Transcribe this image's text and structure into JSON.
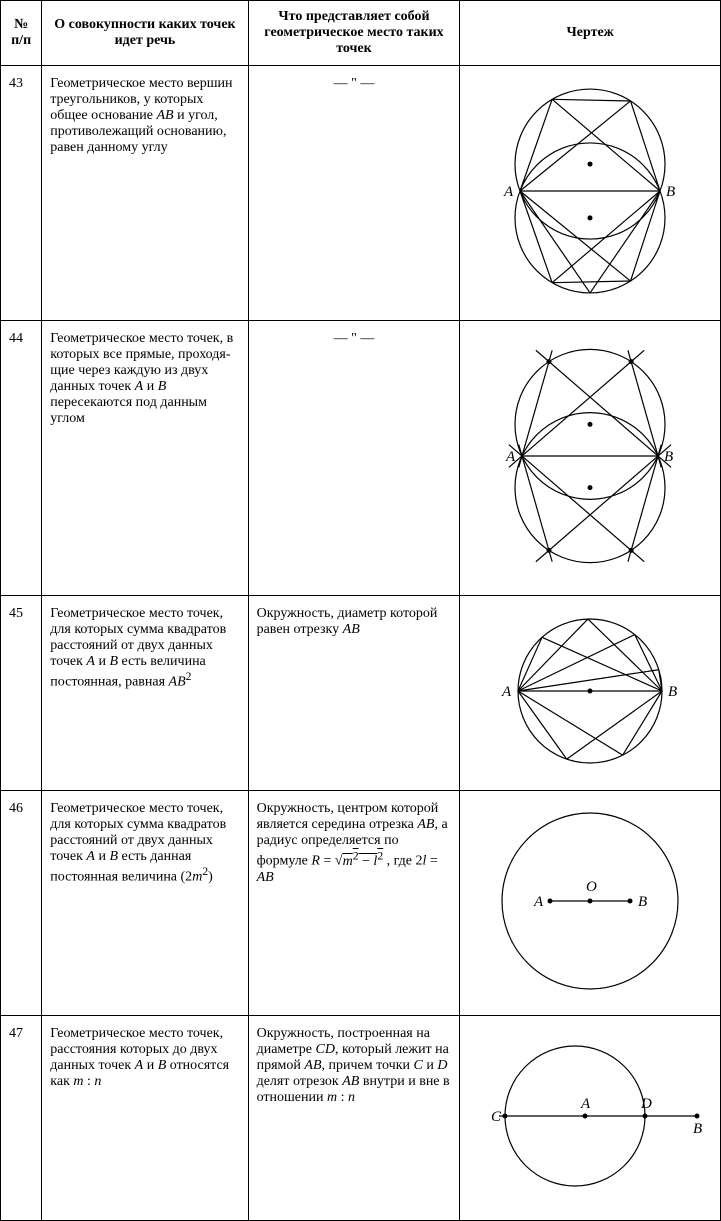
{
  "headers": {
    "num": "№ п/п",
    "desc": "О совокупности каких точек идет речь",
    "what": "Что представляет собой геометрическое место таких точек",
    "fig": "Чертеж"
  },
  "rows": [
    {
      "num": "43",
      "desc_html": "Геометрическое место вершин треугольни­ков, у которых общее основание <span class='ital'>AB</span> и угол, противолежащий основанию, равен данному углу",
      "what_html": "— \" —",
      "what_ditto": true,
      "figure": "fig43"
    },
    {
      "num": "44",
      "desc_html": "Геометрическое место точек, в которых все прямые, проходя­щие через каждую из двух данных точек <span class='ital'>A</span> и <span class='ital'>B</span> пересекаются под данным углом",
      "what_html": "— \" —",
      "what_ditto": true,
      "figure": "fig44"
    },
    {
      "num": "45",
      "desc_html": "Геометрическое место точек, для которых сумма квадратов рас­стояний от двух дан­ных точек <span class='ital'>A</span> и <span class='ital'>B</span> есть величина постоянная, равная <span class='ital'>AB</span><sup>2</sup>",
      "what_html": "Окружность, диа­метр которой равен отрезку <span class='ital'>AB</span>",
      "what_ditto": false,
      "figure": "fig45"
    },
    {
      "num": "46",
      "desc_html": "Геометрическое место точек, для которых сумма квадратов рас­стояний от двух дан­ных точек <span class='ital'>A</span> и <span class='ital'>B</span> есть данная постоянная величина (2<span class='ital'>m</span><sup>2</sup>)",
      "what_html": "Окружность, центром которой является середина отрезка <span class='ital'>AB</span>, а радиус опреде­ляется по формуле <span class='formula'><span class='ital'>R</span> = √<span style='text-decoration:overline'><span class='ital'>m</span><sup>2</sup> − <span class='ital'>l</span><sup>2</sup></span></span> , где 2<span class='ital'>l</span> = <span class='ital'>AB</span>",
      "what_ditto": false,
      "figure": "fig46"
    },
    {
      "num": "47",
      "desc_html": "Геометрическое место точек, расстояния которых до двух дан­ных точек <span class='ital'>A</span> и <span class='ital'>B</span> отно­сятся как <span class='ital'>m</span> : <span class='ital'>n</span>",
      "what_html": "Окружность, постро­енная на диаметре <span class='ital'>CD</span>, который лежит на прямой <span class='ital'>AB</span>, при­чем точки <span class='ital'>C</span> и <span class='ital'>D</span> делят отрезок <span class='ital'>AB</span> внутри и вне в отношении <span class='ital'>m</span> : <span class='ital'>n</span>",
      "what_ditto": false,
      "figure": "fig47"
    }
  ],
  "style": {
    "stroke": "#000000",
    "stroke_width": 1.2,
    "fill": "none",
    "dot_radius": 2.5,
    "bg": "#ffffff",
    "label_font_family": "Georgia, 'Times New Roman', serif",
    "label_font_style": "italic",
    "label_font_size": 15
  }
}
